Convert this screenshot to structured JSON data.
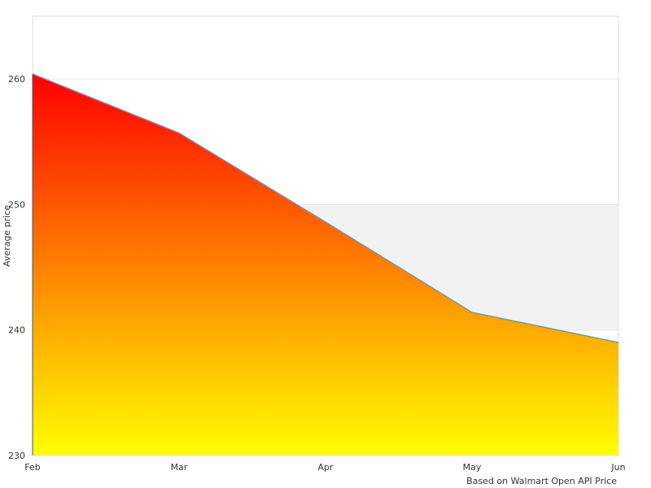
{
  "chart_data": {
    "type": "area",
    "categories": [
      "Feb",
      "Mar",
      "Apr",
      "May",
      "Jun"
    ],
    "series": [
      {
        "values": [
          260.4,
          255.7,
          248.6,
          241.4,
          239.0
        ]
      }
    ],
    "ylabel": "Average price",
    "xlabel": "",
    "ylim": [
      230,
      265
    ],
    "yticks": [
      230,
      240,
      250,
      260
    ],
    "grid": true,
    "band": {
      "from": 240,
      "to": 250,
      "color": "#f2f2f2"
    },
    "fill_gradient": {
      "top": "#ff0000",
      "bottom": "#ffff00"
    },
    "line_color": "#5b9bd5",
    "credit": "Based on Walmart Open API Price"
  }
}
